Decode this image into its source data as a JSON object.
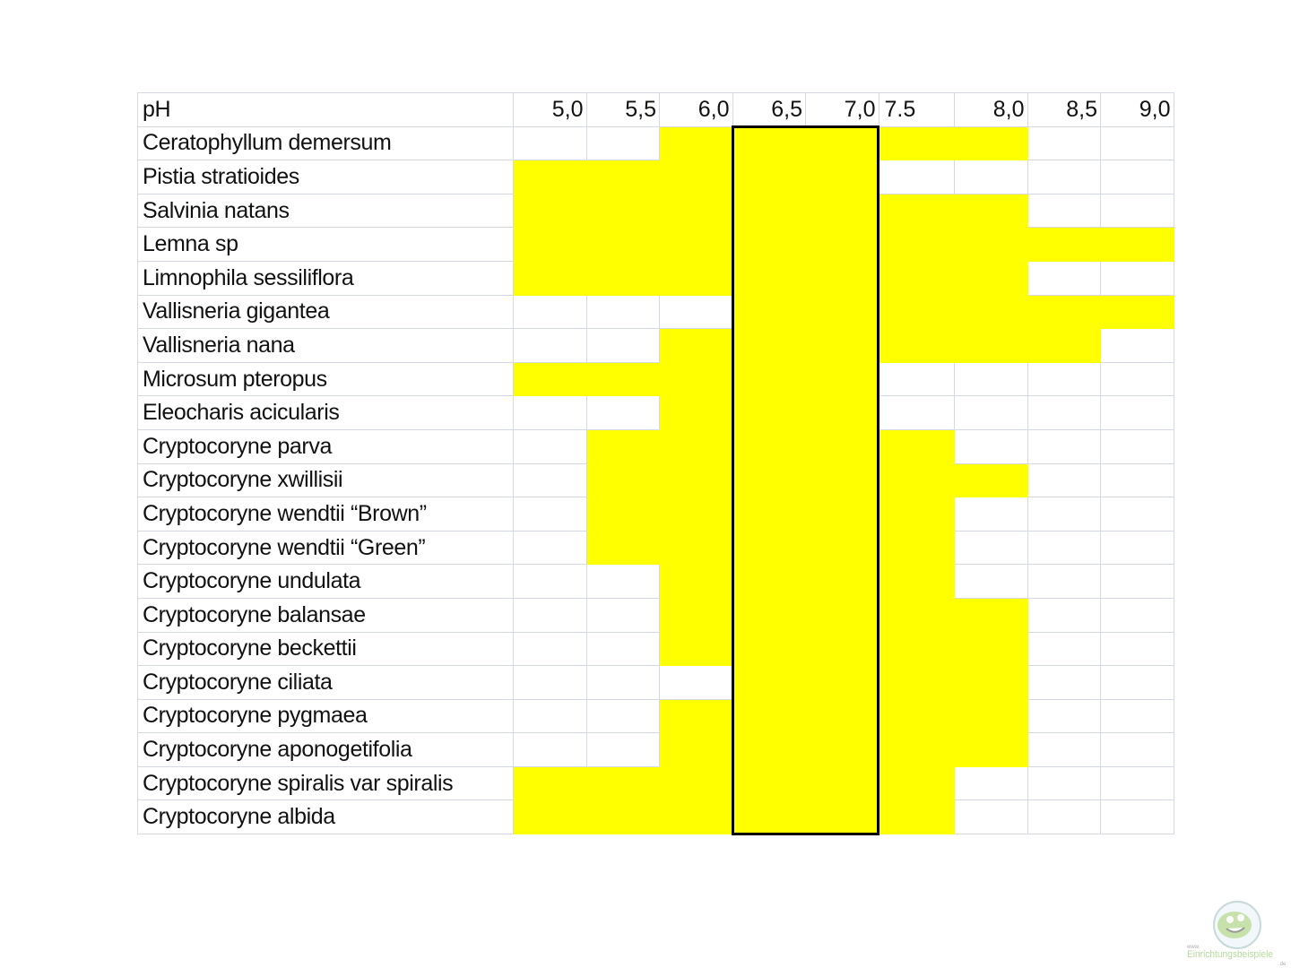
{
  "chart_data": {
    "type": "table",
    "header_label": "pH",
    "columns": [
      "5,0",
      "5,5",
      "6,0",
      "6,5",
      "7,0",
      "7.5",
      "8,0",
      "8,5",
      "9,0"
    ],
    "column_values": [
      5.0,
      5.5,
      6.0,
      6.5,
      7.0,
      7.5,
      8.0,
      8.5,
      9.0
    ],
    "highlight_color": "#ffff00",
    "boxed_range": [
      6.5,
      7.0
    ],
    "rows": [
      {
        "name": "Ceratophyllum demersum",
        "ph_min": 6.0,
        "ph_max": 8.0
      },
      {
        "name": "Pistia stratioides",
        "ph_min": 5.0,
        "ph_max": 7.0
      },
      {
        "name": "Salvinia natans",
        "ph_min": 5.0,
        "ph_max": 8.0
      },
      {
        "name": "Lemna sp",
        "ph_min": 5.0,
        "ph_max": 9.0
      },
      {
        "name": "Limnophila sessiliflora",
        "ph_min": 5.0,
        "ph_max": 8.0
      },
      {
        "name": "Vallisneria gigantea",
        "ph_min": 6.5,
        "ph_max": 9.0
      },
      {
        "name": "Vallisneria nana",
        "ph_min": 6.0,
        "ph_max": 8.5
      },
      {
        "name": "Microsum pteropus",
        "ph_min": 5.0,
        "ph_max": 7.0
      },
      {
        "name": "Eleocharis acicularis",
        "ph_min": 6.0,
        "ph_max": 7.0
      },
      {
        "name": "Cryptocoryne parva",
        "ph_min": 5.5,
        "ph_max": 7.5
      },
      {
        "name": "Cryptocoryne xwillisii",
        "ph_min": 5.5,
        "ph_max": 8.0
      },
      {
        "name": "Cryptocoryne wendtii “Brown”",
        "ph_min": 5.5,
        "ph_max": 7.5
      },
      {
        "name": "Cryptocoryne wendtii “Green”",
        "ph_min": 5.5,
        "ph_max": 7.5
      },
      {
        "name": "Cryptocoryne undulata",
        "ph_min": 6.0,
        "ph_max": 7.5
      },
      {
        "name": "Cryptocoryne balansae",
        "ph_min": 6.0,
        "ph_max": 8.0
      },
      {
        "name": "Cryptocoryne beckettii",
        "ph_min": 6.0,
        "ph_max": 8.0
      },
      {
        "name": "Cryptocoryne ciliata",
        "ph_min": 6.5,
        "ph_max": 8.0
      },
      {
        "name": "Cryptocoryne pygmaea",
        "ph_min": 6.0,
        "ph_max": 8.0
      },
      {
        "name": "Cryptocoryne aponogetifolia",
        "ph_min": 6.0,
        "ph_max": 8.0
      },
      {
        "name": "Cryptocoryne spiralis var spiralis",
        "ph_min": 5.0,
        "ph_max": 7.5
      },
      {
        "name": "Cryptocoryne albida",
        "ph_min": 5.0,
        "ph_max": 7.5
      }
    ]
  },
  "watermark": {
    "text": "www. Einrichtungsbeispiele .de"
  }
}
